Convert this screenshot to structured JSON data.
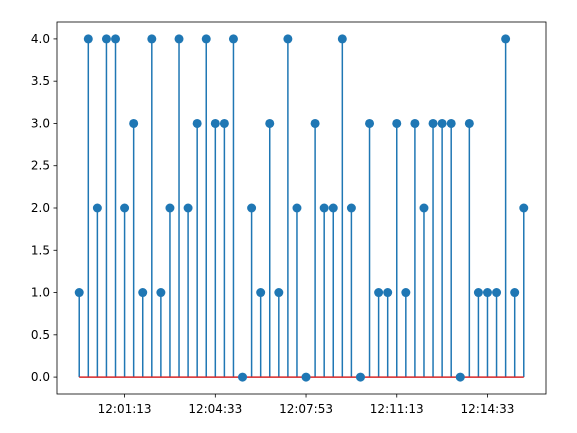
{
  "chart_data": {
    "type": "stem",
    "title": "",
    "xlabel": "",
    "ylabel": "",
    "x": [
      "11:59:33",
      "11:59:53",
      "12:00:13",
      "12:00:33",
      "12:00:53",
      "12:01:13",
      "12:01:33",
      "12:01:53",
      "12:02:13",
      "12:02:33",
      "12:02:53",
      "12:03:13",
      "12:03:33",
      "12:03:53",
      "12:04:13",
      "12:04:33",
      "12:04:53",
      "12:05:13",
      "12:05:33",
      "12:05:53",
      "12:06:13",
      "12:06:33",
      "12:06:53",
      "12:07:13",
      "12:07:33",
      "12:07:53",
      "12:08:13",
      "12:08:33",
      "12:08:53",
      "12:09:13",
      "12:09:33",
      "12:09:53",
      "12:10:13",
      "12:10:33",
      "12:10:53",
      "12:11:13",
      "12:11:33",
      "12:11:53",
      "12:12:13",
      "12:12:33",
      "12:12:53",
      "12:13:13",
      "12:13:33",
      "12:13:53",
      "12:14:13",
      "12:14:33",
      "12:14:53",
      "12:15:13",
      "12:15:33",
      "12:15:53"
    ],
    "values": [
      1,
      4,
      2,
      4,
      4,
      2,
      3,
      1,
      4,
      1,
      2,
      4,
      2,
      3,
      4,
      3,
      3,
      4,
      0,
      2,
      1,
      3,
      1,
      4,
      2,
      0,
      3,
      2,
      2,
      4,
      2,
      0,
      3,
      1,
      1,
      3,
      1,
      3,
      2,
      3,
      3,
      3,
      0,
      3,
      1,
      1,
      1,
      4,
      1,
      2
    ],
    "x_tick_labels": [
      "12:01:13",
      "12:04:33",
      "12:07:53",
      "12:11:13",
      "12:14:33"
    ],
    "y_tick_labels": [
      "0.0",
      "0.5",
      "1.0",
      "1.5",
      "2.0",
      "2.5",
      "3.0",
      "3.5",
      "4.0"
    ],
    "ylim": [
      -0.2,
      4.2
    ],
    "grid": false,
    "colors": {
      "stem": "#1f77b4",
      "baseline": "#d62728",
      "axes": "#000000"
    }
  }
}
